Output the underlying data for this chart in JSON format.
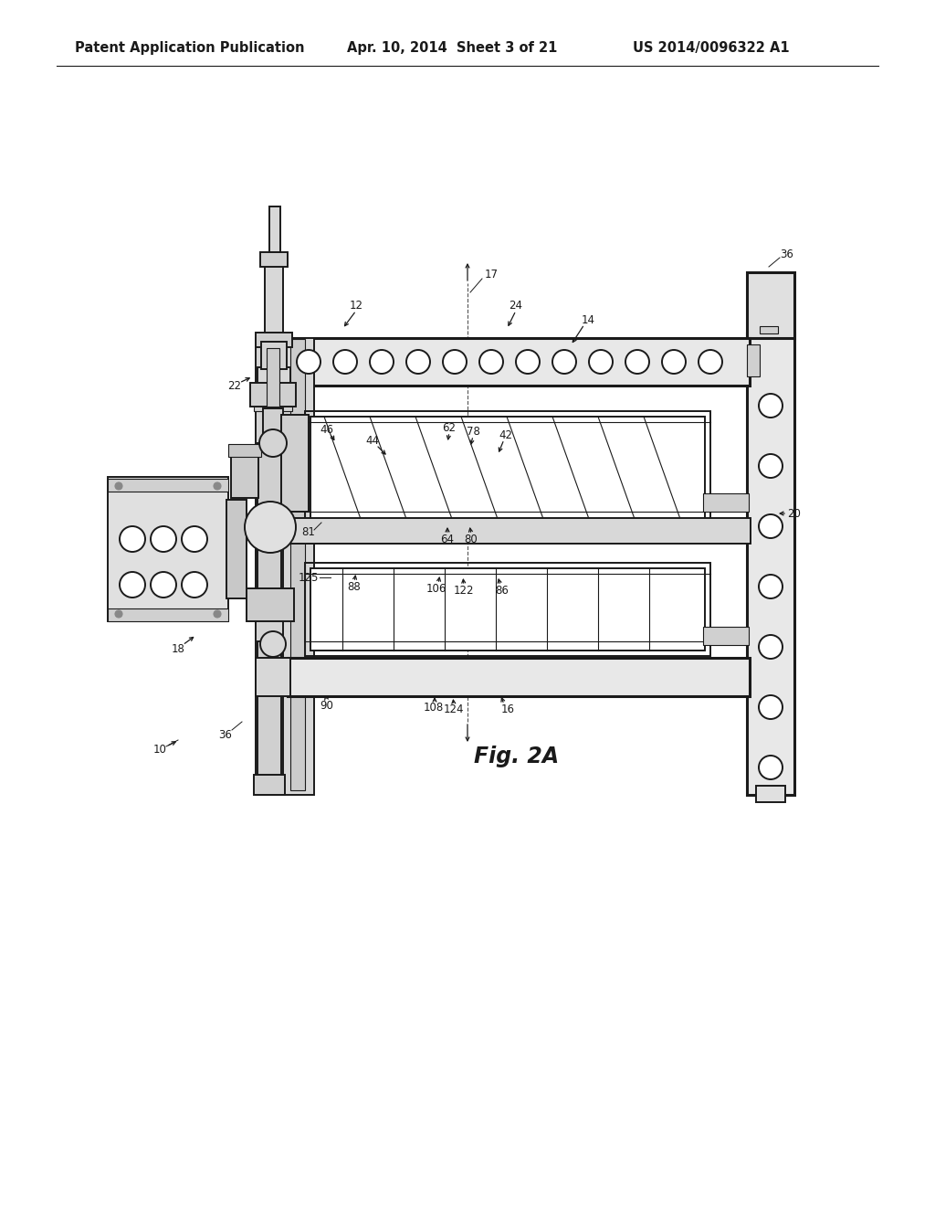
{
  "bg_color": "#ffffff",
  "lc": "#1a1a1a",
  "header_left": "Patent Application Publication",
  "header_mid": "Apr. 10, 2014  Sheet 3 of 21",
  "header_right": "US 2014/0096322 A1",
  "fig_label": "Fig. 2A",
  "lw_main": 1.4,
  "lw_thick": 2.2,
  "lw_thin": 0.8,
  "fs_ref": 8.5,
  "fs_header": 10.5,
  "fs_fig": 17
}
